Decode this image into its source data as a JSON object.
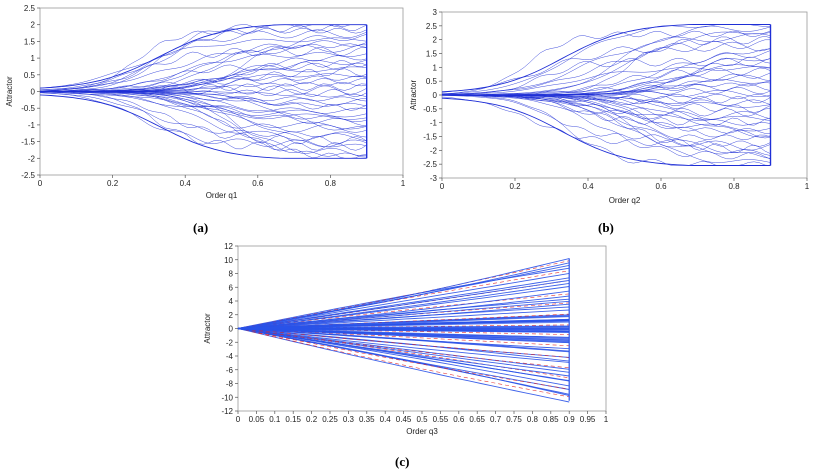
{
  "chart_data": [
    {
      "panel_label": "(a)",
      "type": "line",
      "description_kind": "bifurcation-style attractor envelope",
      "xlabel": "Order q1",
      "ylabel": "Attractor",
      "xlim": [
        0,
        1
      ],
      "ylim": [
        -2.5,
        2.5
      ],
      "xticks": [
        "0",
        "0.2",
        "0.4",
        "0.6",
        "0.8",
        "1"
      ],
      "yticks": [
        "2.5",
        "2",
        "1.5",
        "1",
        "0.5",
        "0",
        "-0.5",
        "-1",
        "-1.5",
        "-2",
        "-2.5"
      ],
      "x_range_of_data": [
        0,
        0.9
      ],
      "envelope_max": 2,
      "envelope_min": -2,
      "line_color": "#1f2fd6",
      "grid": false
    },
    {
      "panel_label": "(b)",
      "type": "line",
      "description_kind": "bifurcation-style attractor envelope",
      "xlabel": "Order q2",
      "ylabel": "Attractor",
      "xlim": [
        0,
        1
      ],
      "ylim": [
        -3,
        3
      ],
      "xticks": [
        "0",
        "0.2",
        "0.4",
        "0.6",
        "0.8",
        "1"
      ],
      "yticks": [
        "3",
        "2.5",
        "2",
        "1.5",
        "1",
        "0.5",
        "0",
        "-0.5",
        "-1",
        "-1.5",
        "-2",
        "-2.5",
        "-3"
      ],
      "x_range_of_data": [
        0,
        0.9
      ],
      "envelope_max": 2.55,
      "envelope_min": -2.55,
      "line_color": "#1f2fd6",
      "grid": false
    },
    {
      "panel_label": "(c)",
      "type": "line",
      "description_kind": "fan of diverging attractor trajectories",
      "xlabel": "Order q3",
      "ylabel": "Attractor",
      "xlim": [
        0,
        1
      ],
      "ylim": [
        -12,
        12
      ],
      "xticks": [
        "0",
        "0.05",
        "0.1",
        "0.15",
        "0.2",
        "0.25",
        "0.3",
        "0.35",
        "0.4",
        "0.45",
        "0.5",
        "0.55",
        "0.6",
        "0.65",
        "0.7",
        "0.75",
        "0.8",
        "0.85",
        "0.9",
        "0.95",
        "1"
      ],
      "yticks": [
        "12",
        "10",
        "8",
        "6",
        "4",
        "2",
        "0",
        "-2",
        "-4",
        "-6",
        "-8",
        "-10",
        "-12"
      ],
      "x_range_of_data": [
        0,
        0.9
      ],
      "envelope_max": 10.2,
      "envelope_min": -10.5,
      "line_color": "#2a52e8",
      "accent_color": "#e02020",
      "grid": false
    }
  ]
}
